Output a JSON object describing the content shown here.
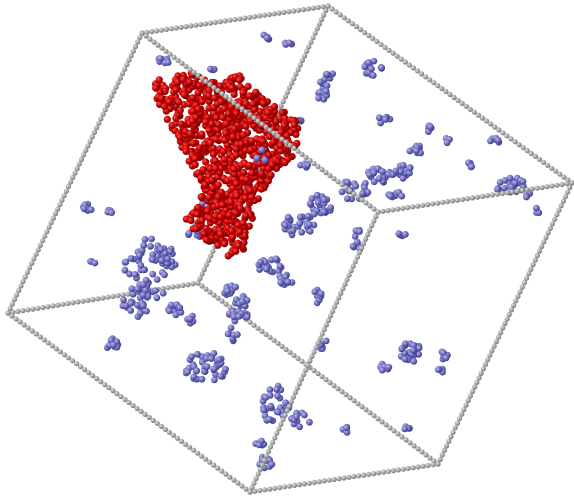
{
  "scene": {
    "description_visible_text": "",
    "colors": {
      "background": "#ffffff",
      "box_edges": "#8c8c8c",
      "box_edges_highlight": "#c8c8c8",
      "cluster_primary": "#c10000",
      "cluster_primary_highlight": "#f03030",
      "cluster_secondary": "#6a6ab8",
      "cluster_secondary_highlight": "#a5a5e2"
    },
    "icons": {
      "simulation_box": "wireframe-cube-icon",
      "large_cluster": "red-particle-cluster-icon",
      "small_clusters": "blue-particle-clusters-icon"
    }
  }
}
